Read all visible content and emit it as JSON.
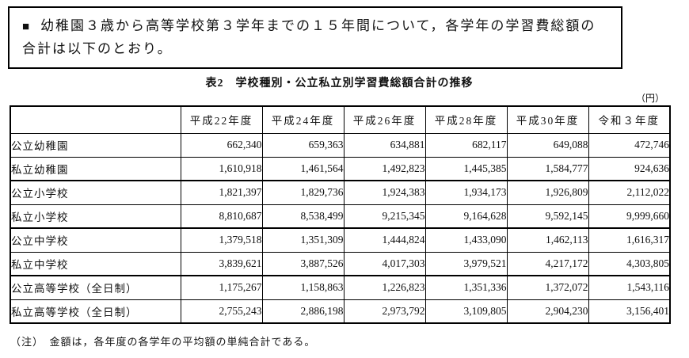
{
  "notice": {
    "bullet": "■",
    "text": "幼稚園３歳から高等学校第３学年までの１５年間について，各学年の学習費総額の合計は以下のとおり。"
  },
  "title": "表2　学校種別・公立私立別学習費総額合計の推移",
  "unit": "（円）",
  "chart_data": {
    "type": "table",
    "title": "学校種別・公立私立別学習費総額合計の推移",
    "columns": [
      "",
      "平成22年度",
      "平成24年度",
      "平成26年度",
      "平成28年度",
      "平成30年度",
      "令和３年度"
    ],
    "rows": [
      {
        "label": "公立幼稚園",
        "values": [
          "662,340",
          "659,363",
          "634,881",
          "682,117",
          "649,088",
          "472,746"
        ]
      },
      {
        "label": "私立幼稚園",
        "values": [
          "1,610,918",
          "1,461,564",
          "1,492,823",
          "1,445,385",
          "1,584,777",
          "924,636"
        ]
      },
      {
        "label": "公立小学校",
        "values": [
          "1,821,397",
          "1,829,736",
          "1,924,383",
          "1,934,173",
          "1,926,809",
          "2,112,022"
        ]
      },
      {
        "label": "私立小学校",
        "values": [
          "8,810,687",
          "8,538,499",
          "9,215,345",
          "9,164,628",
          "9,592,145",
          "9,999,660"
        ]
      },
      {
        "label": "公立中学校",
        "values": [
          "1,379,518",
          "1,351,309",
          "1,444,824",
          "1,433,090",
          "1,462,113",
          "1,616,317"
        ]
      },
      {
        "label": "私立中学校",
        "values": [
          "3,839,621",
          "3,887,526",
          "4,017,303",
          "3,979,521",
          "4,217,172",
          "4,303,805"
        ]
      },
      {
        "label": "公立高等学校（全日制）",
        "values": [
          "1,175,267",
          "1,158,863",
          "1,226,823",
          "1,351,336",
          "1,372,072",
          "1,543,116"
        ]
      },
      {
        "label": "私立高等学校（全日制）",
        "values": [
          "2,755,243",
          "2,886,198",
          "2,973,792",
          "3,109,805",
          "2,904,230",
          "3,156,401"
        ]
      }
    ]
  },
  "note": "（注）　金額は，各年度の各学年の平均額の単純合計である。"
}
